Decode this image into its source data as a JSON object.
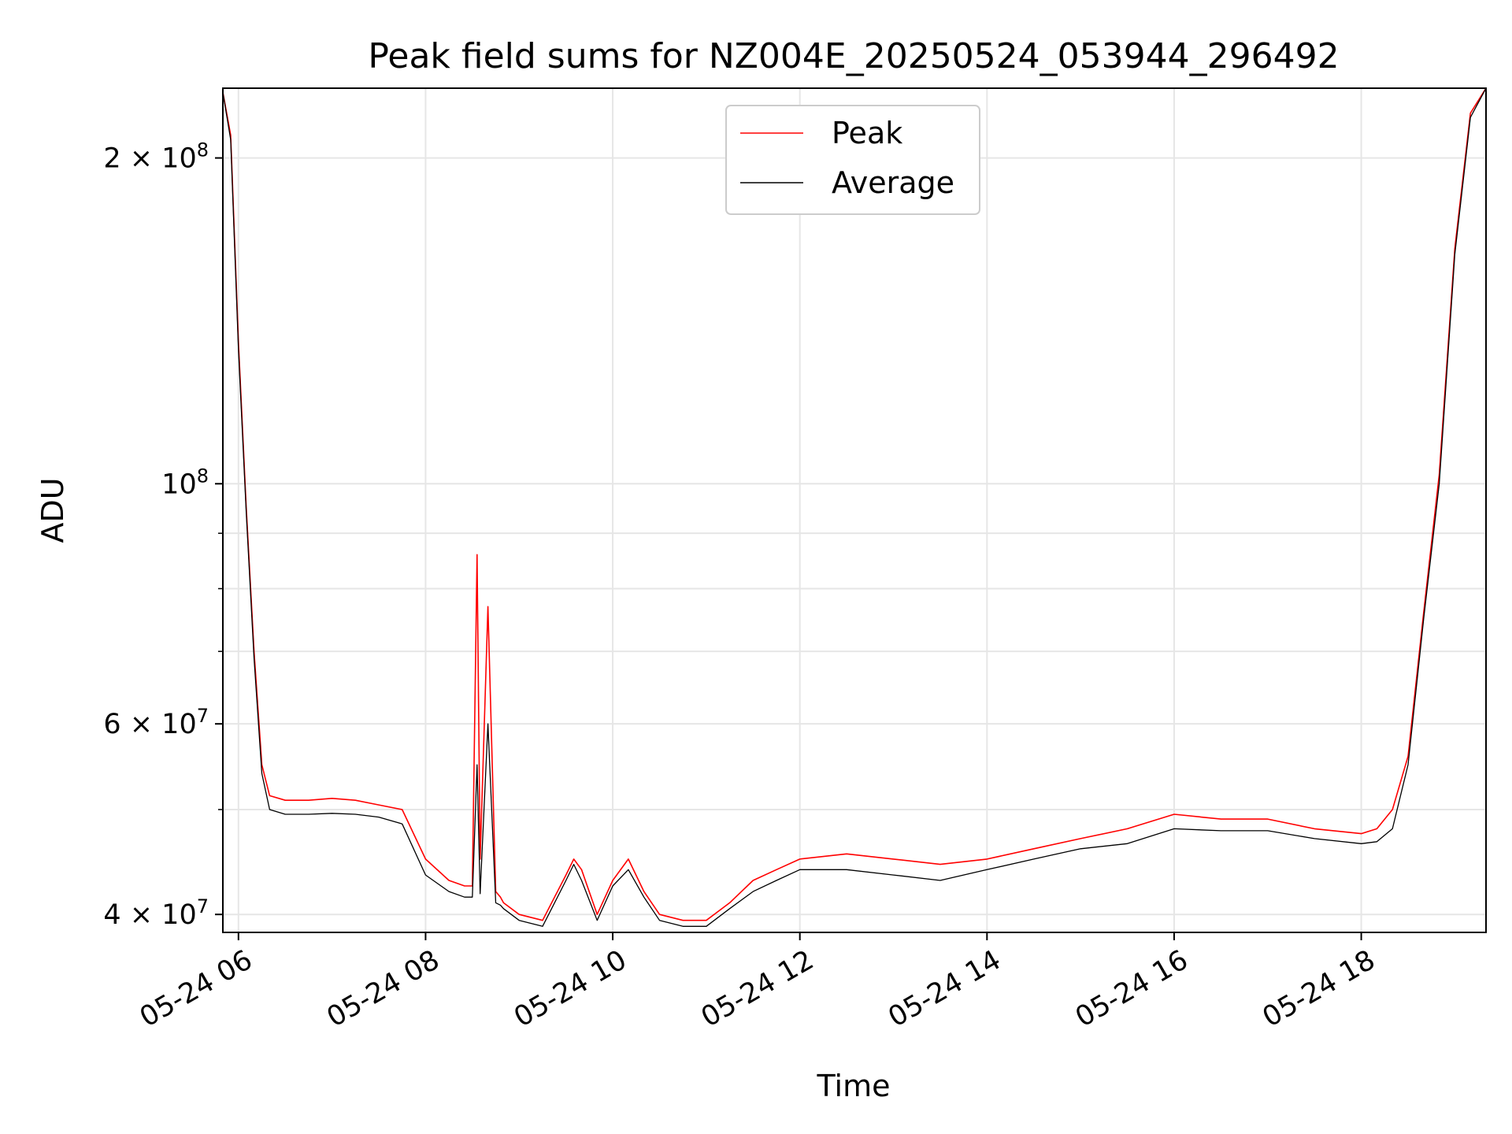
{
  "chart_data": {
    "type": "line",
    "title": "Peak field sums for NZ004E_20250524_053944_296492",
    "xlabel": "Time",
    "ylabel": "ADU",
    "yscale": "log",
    "ylim": [
      38500000,
      232000000
    ],
    "xlim": [
      "05-24 05:50",
      "05-24 19:20"
    ],
    "x_ticks": [
      "05-24 06",
      "05-24 08",
      "05-24 10",
      "05-24 12",
      "05-24 14",
      "05-24 16",
      "05-24 18"
    ],
    "y_ticks": [
      {
        "value": 40000000,
        "base": "4 × 10",
        "exp": "7"
      },
      {
        "value": 60000000,
        "base": "6 × 10",
        "exp": "7"
      },
      {
        "value": 100000000,
        "base": "10",
        "exp": "8"
      },
      {
        "value": 200000000,
        "base": "2 × 10",
        "exp": "8"
      }
    ],
    "grid": true,
    "legend_placement": "top-center",
    "series": [
      {
        "name": "Peak",
        "color": "#ff0000",
        "x": [
          "05-24 05:50",
          "05-24 05:55",
          "05-24 06:00",
          "05-24 06:05",
          "05-24 06:10",
          "05-24 06:15",
          "05-24 06:20",
          "05-24 06:30",
          "05-24 06:45",
          "05-24 07:00",
          "05-24 07:15",
          "05-24 07:30",
          "05-24 07:45",
          "05-24 08:00",
          "05-24 08:15",
          "05-24 08:25",
          "05-24 08:30",
          "05-24 08:33",
          "05-24 08:35",
          "05-24 08:40",
          "05-24 08:45",
          "05-24 08:48",
          "05-24 08:50",
          "05-24 09:00",
          "05-24 09:15",
          "05-24 09:30",
          "05-24 09:35",
          "05-24 09:40",
          "05-24 09:50",
          "05-24 10:00",
          "05-24 10:10",
          "05-24 10:20",
          "05-24 10:30",
          "05-24 10:45",
          "05-24 11:00",
          "05-24 11:15",
          "05-24 11:30",
          "05-24 11:45",
          "05-24 12:00",
          "05-24 12:30",
          "05-24 13:00",
          "05-24 13:30",
          "05-24 14:00",
          "05-24 14:30",
          "05-24 15:00",
          "05-24 15:30",
          "05-24 16:00",
          "05-24 16:30",
          "05-24 17:00",
          "05-24 17:30",
          "05-24 18:00",
          "05-24 18:10",
          "05-24 18:20",
          "05-24 18:30",
          "05-24 18:40",
          "05-24 18:50",
          "05-24 19:00",
          "05-24 19:10",
          "05-24 19:20"
        ],
        "y": [
          230000000,
          210000000,
          135000000,
          95000000,
          70000000,
          55000000,
          51500000,
          51000000,
          51000000,
          51200000,
          51000000,
          50500000,
          50000000,
          45000000,
          43000000,
          42500000,
          42500000,
          86000000,
          45000000,
          77000000,
          42000000,
          41500000,
          41000000,
          40000000,
          39500000,
          43500000,
          45000000,
          44000000,
          40000000,
          43000000,
          45000000,
          42000000,
          40000000,
          39500000,
          39500000,
          41000000,
          43000000,
          44000000,
          45000000,
          45500000,
          45000000,
          44500000,
          45000000,
          46000000,
          47000000,
          48000000,
          49500000,
          49000000,
          49000000,
          48000000,
          47500000,
          48000000,
          50000000,
          56000000,
          76000000,
          102000000,
          165000000,
          220000000,
          232000000
        ]
      },
      {
        "name": "Average",
        "color": "#000000",
        "x": [
          "05-24 05:50",
          "05-24 05:55",
          "05-24 06:00",
          "05-24 06:05",
          "05-24 06:10",
          "05-24 06:15",
          "05-24 06:20",
          "05-24 06:30",
          "05-24 06:45",
          "05-24 07:00",
          "05-24 07:15",
          "05-24 07:30",
          "05-24 07:45",
          "05-24 08:00",
          "05-24 08:15",
          "05-24 08:25",
          "05-24 08:30",
          "05-24 08:33",
          "05-24 08:35",
          "05-24 08:40",
          "05-24 08:45",
          "05-24 08:48",
          "05-24 08:50",
          "05-24 09:00",
          "05-24 09:15",
          "05-24 09:30",
          "05-24 09:35",
          "05-24 09:40",
          "05-24 09:50",
          "05-24 10:00",
          "05-24 10:10",
          "05-24 10:20",
          "05-24 10:30",
          "05-24 10:45",
          "05-24 11:00",
          "05-24 11:15",
          "05-24 11:30",
          "05-24 11:45",
          "05-24 12:00",
          "05-24 12:30",
          "05-24 13:00",
          "05-24 13:30",
          "05-24 14:00",
          "05-24 14:30",
          "05-24 15:00",
          "05-24 15:30",
          "05-24 16:00",
          "05-24 16:30",
          "05-24 17:00",
          "05-24 17:30",
          "05-24 18:00",
          "05-24 18:10",
          "05-24 18:20",
          "05-24 18:30",
          "05-24 18:40",
          "05-24 18:50",
          "05-24 19:00",
          "05-24 19:10",
          "05-24 19:20"
        ],
        "y": [
          230000000,
          208000000,
          133000000,
          94000000,
          69000000,
          54000000,
          50000000,
          49500000,
          49500000,
          49600000,
          49500000,
          49200000,
          48500000,
          43500000,
          42000000,
          41500000,
          41500000,
          55000000,
          41800000,
          60000000,
          41000000,
          40800000,
          40500000,
          39500000,
          39000000,
          43000000,
          44500000,
          43000000,
          39500000,
          42500000,
          44000000,
          41500000,
          39500000,
          39000000,
          39000000,
          40500000,
          42000000,
          43000000,
          44000000,
          44000000,
          43500000,
          43000000,
          44000000,
          45000000,
          46000000,
          46500000,
          48000000,
          47800000,
          47800000,
          47000000,
          46500000,
          46700000,
          48000000,
          55000000,
          75000000,
          100000000,
          163000000,
          218000000,
          232000000
        ]
      }
    ]
  }
}
